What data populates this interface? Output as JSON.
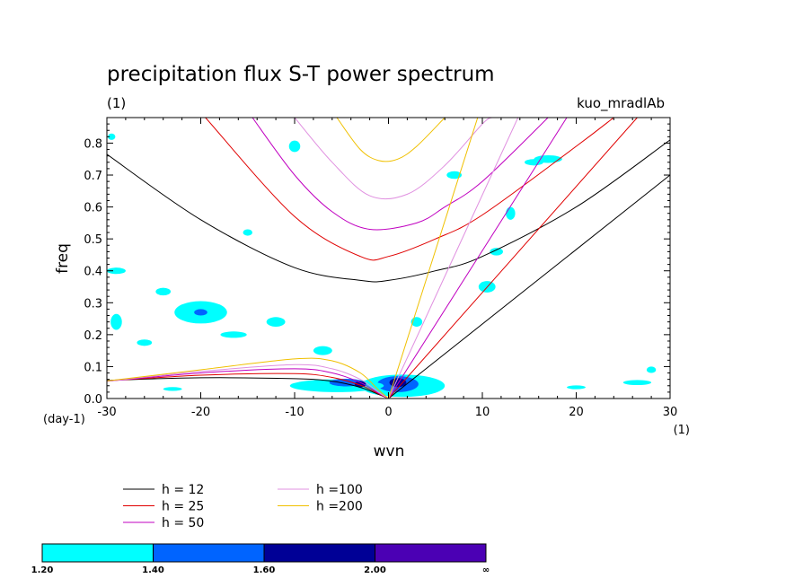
{
  "chart_data": {
    "type": "line",
    "title": "precipitation flux S-T power spectrum",
    "subtitle_left": "(1)",
    "subtitle_right": "kuo_mradlAb",
    "xlabel": "wvn",
    "ylabel": "freq",
    "xunit": "(1)",
    "yunit": "(day-1)",
    "xlim": [
      -30,
      30
    ],
    "ylim": [
      0,
      0.88
    ],
    "xticks": [
      -30,
      -20,
      -10,
      0,
      10,
      20,
      30
    ],
    "yticks": [
      0.0,
      0.1,
      0.2,
      0.3,
      0.4,
      0.5,
      0.6,
      0.7,
      0.8
    ],
    "ytick_labels": [
      "0.0",
      "0.1",
      "0.2",
      "0.3",
      "0.4",
      "0.5",
      "0.6",
      "0.7",
      "0.8"
    ],
    "grid": false,
    "legend_position": "bottom-left",
    "series": [
      {
        "name": "h = 12",
        "color": "#000000",
        "kelvin": [
          [
            0,
            0
          ],
          [
            30,
            0.7
          ]
        ],
        "rossby": [
          [
            -30,
            0.057
          ],
          [
            -20,
            0.065
          ],
          [
            -10,
            0.062
          ],
          [
            -6,
            0.054
          ],
          [
            -3,
            0.035
          ],
          [
            -1,
            0.012
          ],
          [
            0,
            0
          ]
        ],
        "gravity": [
          [
            -30,
            0.765
          ],
          [
            -20,
            0.56
          ],
          [
            -10,
            0.41
          ],
          [
            -3,
            0.37
          ],
          [
            0,
            0.37
          ],
          [
            5,
            0.4
          ],
          [
            10,
            0.445
          ],
          [
            20,
            0.6
          ],
          [
            30,
            0.81
          ]
        ]
      },
      {
        "name": "h = 25",
        "color": "#e00000",
        "kelvin": [
          [
            0,
            0
          ],
          [
            26.5,
            0.88
          ]
        ],
        "rossby": [
          [
            -30,
            0.055
          ],
          [
            -20,
            0.073
          ],
          [
            -10,
            0.078
          ],
          [
            -6,
            0.066
          ],
          [
            -3,
            0.042
          ],
          [
            -1,
            0.014
          ],
          [
            0,
            0
          ]
        ],
        "gravity": [
          [
            -19.5,
            0.88
          ],
          [
            -10,
            0.57
          ],
          [
            -3,
            0.445
          ],
          [
            0,
            0.445
          ],
          [
            5,
            0.5
          ],
          [
            10,
            0.575
          ],
          [
            20,
            0.79
          ],
          [
            24,
            0.88
          ]
        ]
      },
      {
        "name": "h = 50",
        "color": "#c000c0",
        "kelvin": [
          [
            0,
            0
          ],
          [
            19,
            0.88
          ]
        ],
        "rossby": [
          [
            -30,
            0.054
          ],
          [
            -20,
            0.08
          ],
          [
            -10,
            0.093
          ],
          [
            -6,
            0.08
          ],
          [
            -3,
            0.05
          ],
          [
            -1,
            0.016
          ],
          [
            0,
            0
          ]
        ],
        "gravity": [
          [
            -14.5,
            0.88
          ],
          [
            -10,
            0.7
          ],
          [
            -6,
            0.585
          ],
          [
            -2,
            0.53
          ],
          [
            3,
            0.55
          ],
          [
            6,
            0.6
          ],
          [
            10,
            0.68
          ],
          [
            17,
            0.88
          ]
        ]
      },
      {
        "name": "h =100",
        "color": "#e090e0",
        "kelvin": [
          [
            0,
            0
          ],
          [
            13.8,
            0.88
          ]
        ],
        "rossby": [
          [
            -30,
            0.054
          ],
          [
            -20,
            0.085
          ],
          [
            -10,
            0.106
          ],
          [
            -6,
            0.093
          ],
          [
            -3,
            0.06
          ],
          [
            -1,
            0.018
          ],
          [
            0,
            0
          ]
        ],
        "gravity": [
          [
            -10,
            0.88
          ],
          [
            -6,
            0.74
          ],
          [
            -2,
            0.635
          ],
          [
            2,
            0.64
          ],
          [
            6,
            0.73
          ],
          [
            10,
            0.86
          ],
          [
            11,
            0.88
          ]
        ]
      },
      {
        "name": "h =200",
        "color": "#f0c000",
        "kelvin": [
          [
            0,
            0
          ],
          [
            9.5,
            0.88
          ]
        ],
        "rossby": [
          [
            -30,
            0.055
          ],
          [
            -20,
            0.09
          ],
          [
            -10,
            0.124
          ],
          [
            -6,
            0.118
          ],
          [
            -3,
            0.08
          ],
          [
            -1,
            0.025
          ],
          [
            0,
            0
          ]
        ],
        "gravity": [
          [
            -5.5,
            0.88
          ],
          [
            -3,
            0.78
          ],
          [
            -1,
            0.745
          ],
          [
            1,
            0.75
          ],
          [
            3,
            0.79
          ],
          [
            6,
            0.88
          ]
        ]
      }
    ],
    "shaded_levels": {
      "bounds": [
        "1.20",
        "1.40",
        "1.60",
        "2.00",
        "∞"
      ],
      "colors": [
        "#00ffff",
        "#0064ff",
        "#000096",
        "#4b00b4"
      ]
    },
    "shaded_regions": [
      {
        "level": 0,
        "cx": 1.5,
        "cy": 0.04,
        "rx": 4.5,
        "ry": 0.035
      },
      {
        "level": 1,
        "cx": 1.0,
        "cy": 0.045,
        "rx": 2.2,
        "ry": 0.025
      },
      {
        "level": 2,
        "cx": 1.0,
        "cy": 0.05,
        "rx": 0.9,
        "ry": 0.014
      },
      {
        "level": 0,
        "cx": -5.5,
        "cy": 0.04,
        "rx": 5.0,
        "ry": 0.02
      },
      {
        "level": 1,
        "cx": -4.5,
        "cy": 0.05,
        "rx": 1.8,
        "ry": 0.012
      },
      {
        "level": 2,
        "cx": -3.0,
        "cy": 0.045,
        "rx": 0.6,
        "ry": 0.01
      },
      {
        "level": 0,
        "cx": -7.0,
        "cy": 0.15,
        "rx": 1.0,
        "ry": 0.014
      },
      {
        "level": 0,
        "cx": -20.0,
        "cy": 0.27,
        "rx": 2.8,
        "ry": 0.035
      },
      {
        "level": 1,
        "cx": -20.0,
        "cy": 0.27,
        "rx": 0.7,
        "ry": 0.01
      },
      {
        "level": 0,
        "cx": -16.5,
        "cy": 0.2,
        "rx": 1.4,
        "ry": 0.01
      },
      {
        "level": 0,
        "cx": -12.0,
        "cy": 0.24,
        "rx": 1.0,
        "ry": 0.015
      },
      {
        "level": 0,
        "cx": -24.0,
        "cy": 0.335,
        "rx": 0.8,
        "ry": 0.012
      },
      {
        "level": 0,
        "cx": -29.0,
        "cy": 0.24,
        "rx": 0.6,
        "ry": 0.025
      },
      {
        "level": 0,
        "cx": -26.0,
        "cy": 0.175,
        "rx": 0.8,
        "ry": 0.01
      },
      {
        "level": 0,
        "cx": -29.0,
        "cy": 0.4,
        "rx": 1.0,
        "ry": 0.01
      },
      {
        "level": 0,
        "cx": -10.0,
        "cy": 0.79,
        "rx": 0.6,
        "ry": 0.018
      },
      {
        "level": 0,
        "cx": 17.0,
        "cy": 0.75,
        "rx": 1.5,
        "ry": 0.012
      },
      {
        "level": 0,
        "cx": 15.5,
        "cy": 0.74,
        "rx": 1.0,
        "ry": 0.01
      },
      {
        "level": 0,
        "cx": 11.5,
        "cy": 0.46,
        "rx": 0.7,
        "ry": 0.012
      },
      {
        "level": 0,
        "cx": 10.5,
        "cy": 0.35,
        "rx": 0.9,
        "ry": 0.018
      },
      {
        "level": 0,
        "cx": 7.0,
        "cy": 0.7,
        "rx": 0.8,
        "ry": 0.012
      },
      {
        "level": 0,
        "cx": 13.0,
        "cy": 0.58,
        "rx": 0.5,
        "ry": 0.02
      },
      {
        "level": 0,
        "cx": 26.5,
        "cy": 0.05,
        "rx": 1.5,
        "ry": 0.008
      },
      {
        "level": 0,
        "cx": 20.0,
        "cy": 0.035,
        "rx": 1.0,
        "ry": 0.006
      },
      {
        "level": 0,
        "cx": -23.0,
        "cy": 0.03,
        "rx": 1.0,
        "ry": 0.006
      },
      {
        "level": 0,
        "cx": 28.0,
        "cy": 0.09,
        "rx": 0.5,
        "ry": 0.01
      },
      {
        "level": 0,
        "cx": -15.0,
        "cy": 0.52,
        "rx": 0.5,
        "ry": 0.01
      },
      {
        "level": 0,
        "cx": 3.0,
        "cy": 0.24,
        "rx": 0.6,
        "ry": 0.015
      },
      {
        "level": 0,
        "cx": -29.5,
        "cy": 0.82,
        "rx": 0.4,
        "ry": 0.01
      }
    ]
  }
}
